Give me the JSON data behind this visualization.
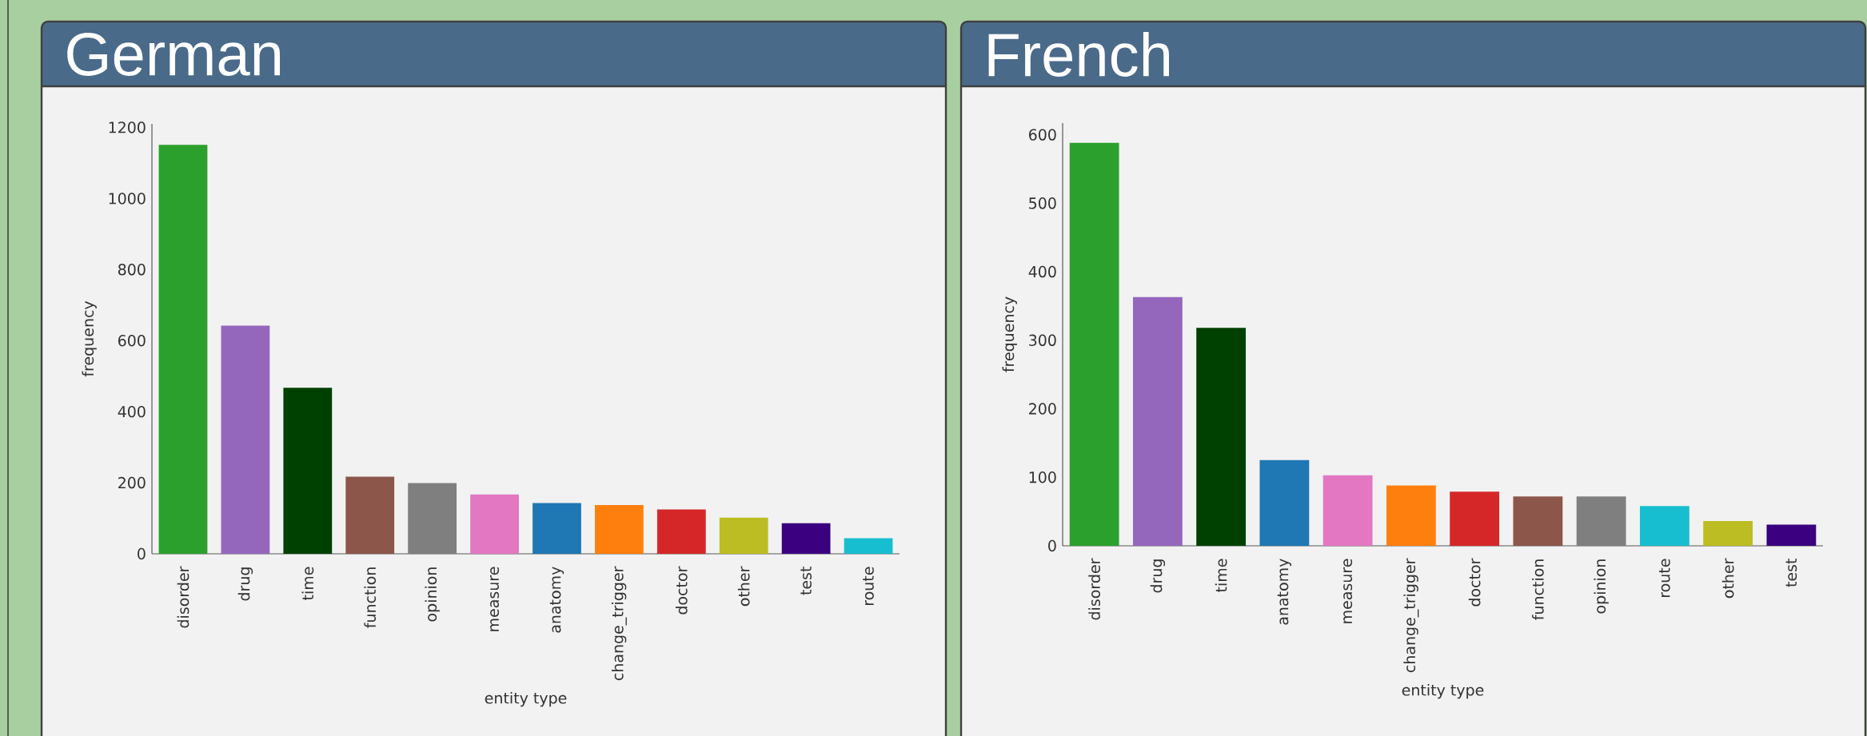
{
  "chart_data": [
    {
      "type": "bar",
      "title": "German",
      "xlabel": "entity type",
      "ylabel": "frequency",
      "categories": [
        "disorder",
        "drug",
        "time",
        "function",
        "opinion",
        "measure",
        "anatomy",
        "change_trigger",
        "doctor",
        "other",
        "test",
        "route"
      ],
      "values": [
        1151,
        642,
        467,
        217,
        199,
        167,
        143,
        137,
        125,
        102,
        86,
        44
      ],
      "colors": [
        "#2ca02c",
        "#9467bd",
        "#004000",
        "#8c564b",
        "#7f7f7f",
        "#e377c2",
        "#1f77b4",
        "#ff7f0e",
        "#d62728",
        "#bcbd22",
        "#3a007f",
        "#17becf"
      ],
      "ylim": [
        0,
        1210
      ],
      "yticks": [
        0,
        200,
        400,
        600,
        800,
        1000,
        1200
      ]
    },
    {
      "type": "bar",
      "title": "French",
      "xlabel": "entity type",
      "ylabel": "frequency",
      "categories": [
        "disorder",
        "drug",
        "time",
        "anatomy",
        "measure",
        "change_trigger",
        "doctor",
        "function",
        "opinion",
        "route",
        "other",
        "test"
      ],
      "values": [
        588,
        363,
        318,
        125,
        103,
        88,
        79,
        72,
        72,
        58,
        36,
        31
      ],
      "colors": [
        "#2ca02c",
        "#9467bd",
        "#004000",
        "#1f77b4",
        "#e377c2",
        "#ff7f0e",
        "#d62728",
        "#8c564b",
        "#7f7f7f",
        "#17becf",
        "#bcbd22",
        "#3a007f"
      ],
      "ylim": [
        0,
        617
      ],
      "yticks": [
        0,
        100,
        200,
        300,
        400,
        500,
        600
      ]
    }
  ]
}
